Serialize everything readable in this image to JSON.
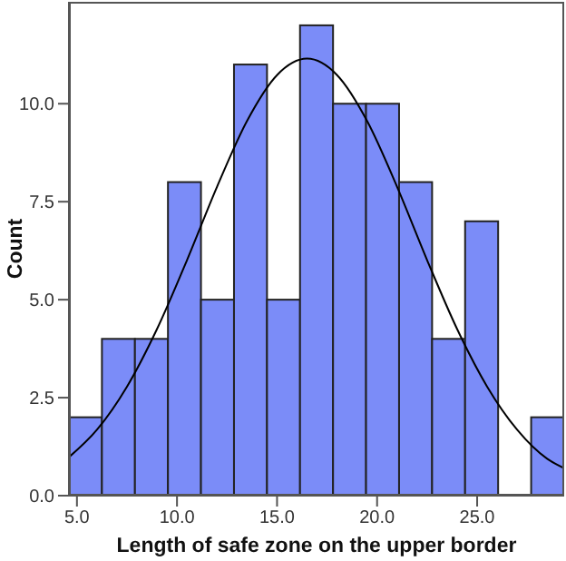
{
  "chart_data": {
    "type": "histogram",
    "xlabel": "Length of safe zone on the upper border",
    "ylabel": "Count",
    "bins": [
      4.6,
      6.25,
      7.9,
      9.55,
      11.2,
      12.85,
      14.5,
      16.15,
      17.8,
      19.45,
      21.1,
      22.75,
      24.4,
      26.05,
      27.7,
      29.35
    ],
    "values": [
      2,
      4,
      4,
      8,
      5,
      11,
      5,
      12,
      10,
      10,
      8,
      4,
      7,
      0,
      2
    ],
    "color": "#7b8cf8",
    "series": [
      {
        "type": "line",
        "color": "#000000",
        "x": [
          4.6,
          6,
          7.5,
          9,
          10.5,
          12,
          13.5,
          15,
          16.5,
          18,
          19.5,
          21,
          22.5,
          24,
          25.5,
          27,
          28.5,
          29.35
        ],
        "values": [
          0.98,
          1.68,
          2.78,
          4.25,
          6.01,
          7.88,
          9.56,
          10.73,
          11.15,
          10.73,
          9.56,
          7.88,
          6.01,
          4.25,
          2.78,
          1.68,
          0.94,
          0.7
        ]
      }
    ],
    "xlim": [
      4.6,
      29.35
    ],
    "ylim": [
      0,
      12.6
    ],
    "xticks": [
      {
        "value": 5,
        "label": "5.0"
      },
      {
        "value": 10,
        "label": "10.0"
      },
      {
        "value": 15,
        "label": "15.0"
      },
      {
        "value": 20,
        "label": "20.0"
      },
      {
        "value": 25,
        "label": "25.0"
      }
    ],
    "yticks": [
      {
        "value": 0,
        "label": "0.0"
      },
      {
        "value": 2.5,
        "label": "2.5"
      },
      {
        "value": 5,
        "label": "5.0"
      },
      {
        "value": 7.5,
        "label": "7.5"
      },
      {
        "value": 10,
        "label": "10.0"
      }
    ],
    "grid": false,
    "legend": false,
    "marker": "none",
    "line_style": "solid"
  }
}
